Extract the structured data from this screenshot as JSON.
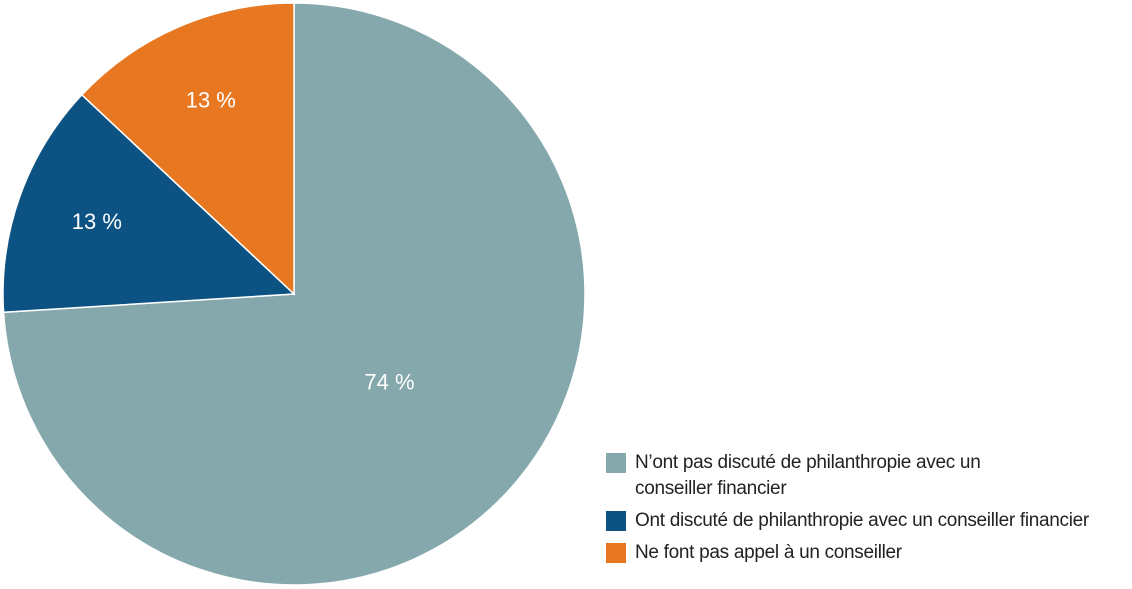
{
  "chart_data": {
    "type": "pie",
    "title": "",
    "categories": [
      "N’ont pas discuté de philanthropie avec un conseiller financier",
      "Ont discuté de philanthropie avec un conseiller financier",
      "Ne font pas appel à un conseiller"
    ],
    "values": [
      74,
      13,
      13
    ],
    "data_labels": [
      "74 %",
      "13 %",
      "13 %"
    ],
    "colors": [
      "#84a8ac",
      "#0c5282",
      "#e87722"
    ],
    "start_angle": "12 o'clock",
    "direction": "clockwise",
    "legend_position": "bottom-right"
  }
}
